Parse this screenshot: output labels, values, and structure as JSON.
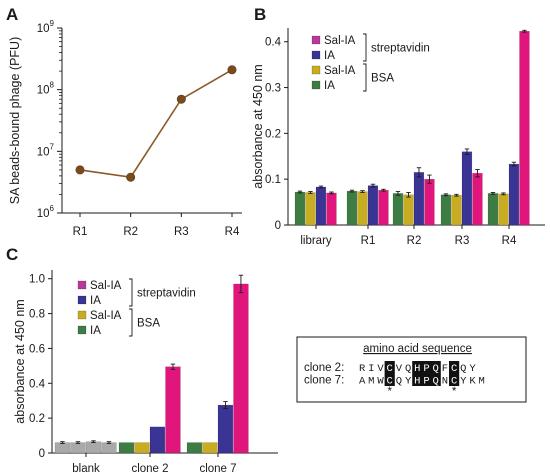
{
  "panels": {
    "a": "A",
    "b": "B",
    "c": "C"
  },
  "colors": {
    "streptavidin_sal_ia": "#e0167d",
    "streptavidin_ia": "#3a3494",
    "bsa_sal_ia": "#c8ac22",
    "bsa_ia": "#3d7d44",
    "blank_bar": "#a9a9a9",
    "line_a": "#8b5a2b",
    "marker_a": "#7a4a1e",
    "axis": "#1a1a1a",
    "seq_box": "#1a1a1a"
  },
  "legend": {
    "items": [
      {
        "label": "Sal-IA",
        "color": "#b8399a"
      },
      {
        "label": "IA",
        "color": "#3a3494"
      },
      {
        "label": "Sal-IA",
        "color": "#c8ac22"
      },
      {
        "label": "IA",
        "color": "#3d7d44"
      }
    ],
    "groups": [
      "streptavidin",
      "BSA"
    ]
  },
  "chart_data": [
    {
      "type": "line",
      "categories": [
        "R1",
        "R2",
        "R3",
        "R4"
      ],
      "values": [
        5000000,
        3800000,
        70000000,
        210000000
      ],
      "xlabel": "",
      "ylabel": "SA beads-bound phage (PFU)",
      "ylim": [
        1000000,
        1000000000
      ],
      "yscale": "log",
      "ytick_labels": [
        "10^6",
        "10^7",
        "10^8",
        "10^9"
      ]
    },
    {
      "type": "bar",
      "categories": [
        "library",
        "R1",
        "R2",
        "R3",
        "R4"
      ],
      "series": [
        {
          "name": "IA (BSA)",
          "values": [
            0.072,
            0.074,
            0.069,
            0.066,
            0.069
          ],
          "errors": [
            0.002,
            0.002,
            0.004,
            0.002,
            0.002
          ]
        },
        {
          "name": "Sal-IA (BSA)",
          "values": [
            0.071,
            0.073,
            0.066,
            0.065,
            0.068
          ],
          "errors": [
            0.002,
            0.002,
            0.005,
            0.002,
            0.002
          ]
        },
        {
          "name": "IA (streptavidin)",
          "values": [
            0.083,
            0.086,
            0.115,
            0.16,
            0.133
          ],
          "errors": [
            0.002,
            0.003,
            0.01,
            0.006,
            0.004
          ]
        },
        {
          "name": "Sal-IA (streptavidin)",
          "values": [
            0.07,
            0.076,
            0.1,
            0.113,
            0.423
          ],
          "errors": [
            0.002,
            0.002,
            0.009,
            0.008,
            0.002
          ]
        }
      ],
      "xlabel": "",
      "ylabel": "absorbance at 450 nm",
      "ylim": [
        0,
        0.43
      ],
      "yticks": [
        0,
        0.1,
        0.2,
        0.3,
        0.4
      ],
      "ytick_labels": [
        "0",
        "0.1",
        "0.2",
        "0.3",
        "0.4"
      ]
    },
    {
      "type": "bar",
      "categories": [
        "blank",
        "clone 2",
        "clone 7"
      ],
      "series": [
        {
          "name": "IA (BSA)",
          "values": [
            0.06,
            0.06,
            0.06
          ],
          "errors": [
            0.005,
            0,
            0
          ]
        },
        {
          "name": "Sal-IA (BSA)",
          "values": [
            0.06,
            0.06,
            0.06
          ],
          "errors": [
            0.005,
            0,
            0
          ]
        },
        {
          "name": "IA (streptavidin)",
          "values": [
            0.065,
            0.15,
            0.275
          ],
          "errors": [
            0.005,
            0,
            0.02
          ]
        },
        {
          "name": "Sal-IA (streptavidin)",
          "values": [
            0.06,
            0.495,
            0.97
          ],
          "errors": [
            0.005,
            0.015,
            0.05
          ]
        }
      ],
      "xlabel": "",
      "ylabel": "absorbance at 450 nm",
      "ylim": [
        0,
        1.05
      ],
      "yticks": [
        0,
        0.2,
        0.4,
        0.6,
        0.8,
        1.0
      ],
      "ytick_labels": [
        "0",
        "0.2",
        "0.4",
        "0.6",
        "0.8",
        "1.0"
      ]
    }
  ],
  "sequence": {
    "title": "amino acid sequence",
    "rows": [
      {
        "label": "clone 2:",
        "residues": [
          "R",
          "I",
          "V",
          "C",
          "V",
          "Q",
          "H",
          "P",
          "Q",
          "F",
          "C",
          "Q",
          "Y"
        ],
        "highlight": [
          3,
          6,
          7,
          8,
          10
        ]
      },
      {
        "label": "clone 7:",
        "residues": [
          "A",
          "M",
          "W",
          "C",
          "Q",
          "Y",
          "H",
          "P",
          "Q",
          "N",
          "C",
          "Y",
          "K",
          "M"
        ],
        "highlight": [
          3,
          6,
          7,
          8,
          10
        ]
      }
    ],
    "marker": "*",
    "marker_positions": [
      3,
      10
    ]
  }
}
